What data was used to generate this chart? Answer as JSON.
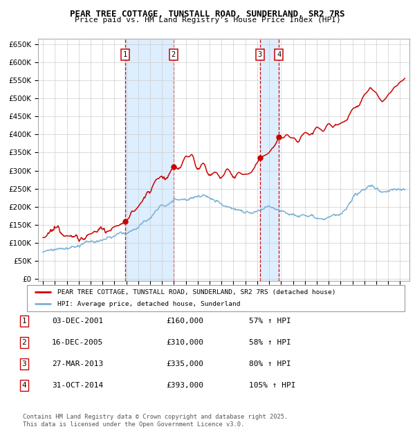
{
  "title": "PEAR TREE COTTAGE, TUNSTALL ROAD, SUNDERLAND, SR2 7RS",
  "subtitle": "Price paid vs. HM Land Registry's House Price Index (HPI)",
  "legend_line1": "PEAR TREE COTTAGE, TUNSTALL ROAD, SUNDERLAND, SR2 7RS (detached house)",
  "legend_line2": "HPI: Average price, detached house, Sunderland",
  "footer": "Contains HM Land Registry data © Crown copyright and database right 2025.\nThis data is licensed under the Open Government Licence v3.0.",
  "red_color": "#cc0000",
  "blue_color": "#7ab0d4",
  "shade_color": "#ddeeff",
  "yticks": [
    0,
    50000,
    100000,
    150000,
    200000,
    250000,
    300000,
    350000,
    400000,
    450000,
    500000,
    550000,
    600000,
    650000
  ],
  "purchases": [
    {
      "label": "1",
      "date_num": 2001.92,
      "price": 160000,
      "date_str": "03-DEC-2001",
      "price_str": "£160,000",
      "hpi_str": "57% ↑ HPI"
    },
    {
      "label": "2",
      "date_num": 2005.96,
      "price": 310000,
      "date_str": "16-DEC-2005",
      "price_str": "£310,000",
      "hpi_str": "58% ↑ HPI"
    },
    {
      "label": "3",
      "date_num": 2013.23,
      "price": 335000,
      "date_str": "27-MAR-2013",
      "price_str": "£335,000",
      "hpi_str": "80% ↑ HPI"
    },
    {
      "label": "4",
      "date_num": 2014.83,
      "price": 393000,
      "date_str": "31-OCT-2014",
      "price_str": "£393,000",
      "hpi_str": "105% ↑ HPI"
    }
  ]
}
